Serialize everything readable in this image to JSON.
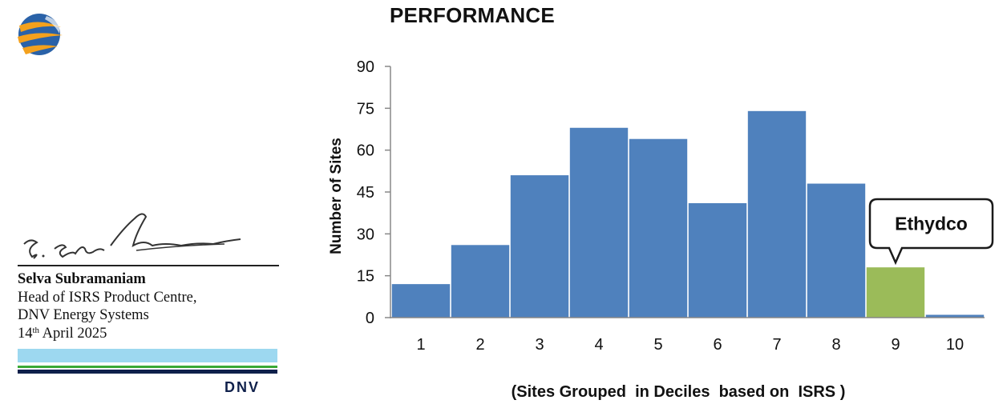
{
  "signatory": {
    "name": "Selva Subramaniam",
    "role": "Head of ISRS Product Centre,",
    "org": "DNV Energy Systems",
    "date_day": "14",
    "date_suffix": "th",
    "date_rest": " April 2025"
  },
  "brand": {
    "text": "DNV"
  },
  "colors": {
    "bar": "#4f81bd",
    "highlight": "#9bbb59",
    "brand_navy": "#0f204b",
    "brand_green": "#3aa935",
    "brand_light": "#9dd8f0",
    "logo_orange": "#f4a11d",
    "logo_blue": "#2a62a8"
  },
  "icons": {
    "logo": "globe-swirl-logo",
    "signature": "handwritten-signature"
  },
  "chart_data": {
    "type": "bar",
    "title": "PERFORMANCE",
    "xlabel": "(Sites Grouped  in Deciles  based on  ISRS )",
    "ylabel": "Number of Sites",
    "categories": [
      "1",
      "2",
      "3",
      "4",
      "5",
      "6",
      "7",
      "8",
      "9",
      "10"
    ],
    "values": [
      12,
      26,
      51,
      68,
      64,
      41,
      74,
      48,
      18,
      1
    ],
    "highlight_index": 8,
    "annotation": "Ethydco",
    "ylim": [
      0,
      90
    ],
    "yticks": [
      0,
      15,
      30,
      45,
      60,
      75,
      90
    ],
    "grid": false
  }
}
